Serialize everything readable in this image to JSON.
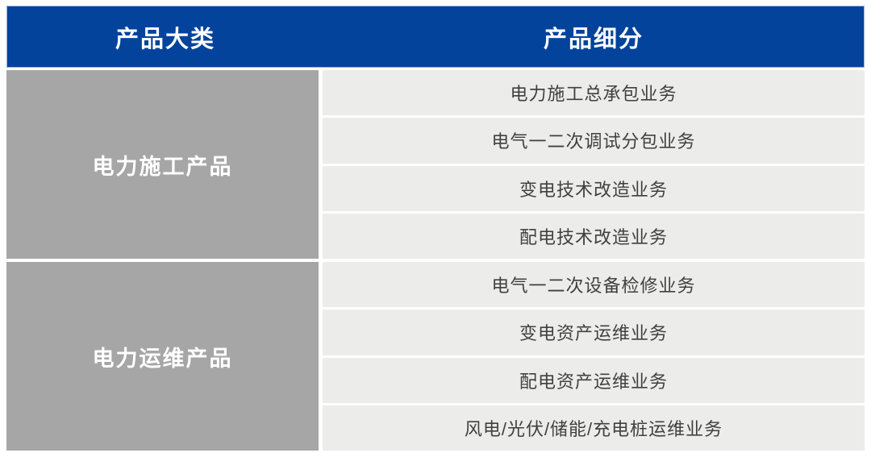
{
  "table": {
    "header": {
      "col1": "产品大类",
      "col2": "产品细分"
    },
    "groups": [
      {
        "category": "电力施工产品",
        "items": [
          "电力施工总承包业务",
          "电气一二次调试分包业务",
          "变电技术改造业务",
          "配电技术改造业务"
        ]
      },
      {
        "category": "电力运维产品",
        "items": [
          "电气一二次设备检修业务",
          "变电资产运维业务",
          "配电资产运维业务",
          "风电/光伏/储能/充电桩运维业务"
        ]
      }
    ],
    "colors": {
      "header_bg": "#04439B",
      "category_bg": "#A6A6A6",
      "cell_bg": "#ECECEB",
      "header_text": "#FFFFFF",
      "cell_text": "#404040"
    }
  }
}
